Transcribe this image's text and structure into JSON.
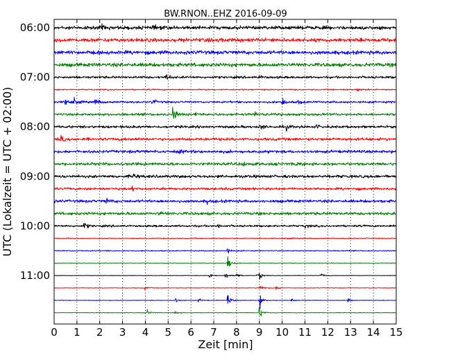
{
  "chart_data": {
    "type": "line",
    "title": "BW.RNON..EHZ 2016-09-09",
    "xlabel": "Zeit  [min]",
    "ylabel": "UTC (Lokalzeit = UTC + 02:00)",
    "xlim": [
      0,
      15
    ],
    "x_ticks": [
      "0",
      "1",
      "2",
      "3",
      "4",
      "5",
      "6",
      "7",
      "8",
      "9",
      "10",
      "11",
      "12",
      "13",
      "14",
      "15"
    ],
    "y_ticks": [
      {
        "label": "06:00",
        "row": 0
      },
      {
        "label": "07:00",
        "row": 4
      },
      {
        "label": "08:00",
        "row": 8
      },
      {
        "label": "09:00",
        "row": 12
      },
      {
        "label": "10:00",
        "row": 16
      },
      {
        "label": "11:00",
        "row": 20
      }
    ],
    "vertical_grid": "dotted",
    "color_cycle": [
      "#000000",
      "#ff0000",
      "#0000ff",
      "#008000"
    ],
    "traces": [
      {
        "start": "06:00",
        "amplitude": 0.42,
        "events": [
          {
            "t": 2.1,
            "a": 0.5
          },
          {
            "t": 4.4,
            "a": 0.45
          }
        ]
      },
      {
        "start": "06:15",
        "amplitude": 0.45,
        "events": []
      },
      {
        "start": "06:30",
        "amplitude": 0.45,
        "events": []
      },
      {
        "start": "06:45",
        "amplitude": 0.45,
        "events": []
      },
      {
        "start": "07:00",
        "amplitude": 0.28,
        "events": [
          {
            "t": 4.9,
            "a": 0.8
          },
          {
            "t": 9.0,
            "a": 0.35
          }
        ]
      },
      {
        "start": "07:15",
        "amplitude": 0.15,
        "events": [
          {
            "t": 13.3,
            "a": 0.35
          }
        ]
      },
      {
        "start": "07:30",
        "amplitude": 0.25,
        "events": [
          {
            "t": 0.5,
            "a": 1.4
          },
          {
            "t": 0.9,
            "a": 0.9
          },
          {
            "t": 1.8,
            "a": 0.9
          },
          {
            "t": 4.3,
            "a": 0.7
          },
          {
            "t": 10.0,
            "a": 0.9
          },
          {
            "t": 10.7,
            "a": 0.6
          }
        ]
      },
      {
        "start": "07:45",
        "amplitude": 0.3,
        "events": [
          {
            "t": 5.2,
            "a": 2.0
          },
          {
            "t": 6.2,
            "a": 0.5
          },
          {
            "t": 8.8,
            "a": 0.6
          }
        ]
      },
      {
        "start": "08:00",
        "amplitude": 0.3,
        "events": [
          {
            "t": 9.0,
            "a": 0.9
          },
          {
            "t": 10.2,
            "a": 0.6
          },
          {
            "t": 11.5,
            "a": 0.4
          }
        ]
      },
      {
        "start": "08:15",
        "amplitude": 0.35,
        "events": [
          {
            "t": 0.3,
            "a": 0.6
          }
        ]
      },
      {
        "start": "08:30",
        "amplitude": 0.35,
        "events": [
          {
            "t": 5.5,
            "a": 0.4
          }
        ]
      },
      {
        "start": "08:45",
        "amplitude": 0.35,
        "events": [
          {
            "t": 8.3,
            "a": 0.5
          },
          {
            "t": 10.6,
            "a": 0.5
          }
        ]
      },
      {
        "start": "09:00",
        "amplitude": 0.35,
        "events": [
          {
            "t": 3.5,
            "a": 0.5
          }
        ]
      },
      {
        "start": "09:15",
        "amplitude": 0.3,
        "events": [
          {
            "t": 3.4,
            "a": 0.45
          }
        ]
      },
      {
        "start": "09:30",
        "amplitude": 0.35,
        "events": [
          {
            "t": 2.3,
            "a": 0.5
          },
          {
            "t": 6.7,
            "a": 0.4
          }
        ]
      },
      {
        "start": "09:45",
        "amplitude": 0.35,
        "events": [
          {
            "t": 4.6,
            "a": 0.45
          }
        ]
      },
      {
        "start": "10:00",
        "amplitude": 0.25,
        "events": [
          {
            "t": 1.3,
            "a": 0.9
          },
          {
            "t": 7.2,
            "a": 0.4
          },
          {
            "t": 11.0,
            "a": 0.4
          }
        ]
      },
      {
        "start": "10:15",
        "amplitude": 0.1,
        "events": [
          {
            "t": 10.2,
            "a": 0.35
          }
        ]
      },
      {
        "start": "10:30",
        "amplitude": 0.12,
        "events": [
          {
            "t": 7.6,
            "a": 0.6
          }
        ]
      },
      {
        "start": "10:45",
        "amplitude": 0.06,
        "events": [
          {
            "t": 7.6,
            "a": 2.5
          }
        ]
      },
      {
        "start": "11:00",
        "amplitude": 0.05,
        "events": [
          {
            "t": 6.8,
            "a": 0.6
          },
          {
            "t": 7.5,
            "a": 0.9
          },
          {
            "t": 8.0,
            "a": 0.6
          },
          {
            "t": 8.9,
            "a": 0.5
          },
          {
            "t": 9.0,
            "a": 0.8
          },
          {
            "t": 11.7,
            "a": 0.6
          }
        ]
      },
      {
        "start": "11:15",
        "amplitude": 0.07,
        "events": [
          {
            "t": 4.0,
            "a": 0.4
          },
          {
            "t": 9.0,
            "a": 1.2
          },
          {
            "t": 9.7,
            "a": 0.5
          }
        ]
      },
      {
        "start": "11:30",
        "amplitude": 0.07,
        "events": [
          {
            "t": 5.3,
            "a": 0.7
          },
          {
            "t": 6.3,
            "a": 0.5
          },
          {
            "t": 7.6,
            "a": 1.5
          },
          {
            "t": 9.0,
            "a": 2.0
          },
          {
            "t": 10.4,
            "a": 0.5
          },
          {
            "t": 12.9,
            "a": 0.4
          }
        ]
      },
      {
        "start": "11:45",
        "amplitude": 0.07,
        "events": [
          {
            "t": 4.1,
            "a": 0.7
          },
          {
            "t": 5.3,
            "a": 0.5
          },
          {
            "t": 9.0,
            "a": 1.5
          }
        ]
      }
    ]
  }
}
